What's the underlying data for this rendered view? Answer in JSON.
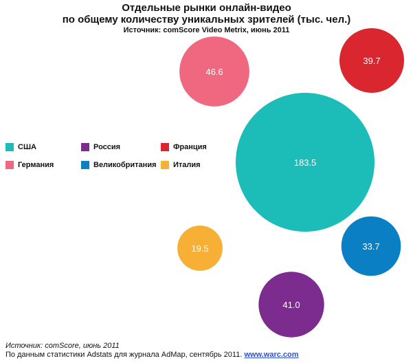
{
  "chart_data": {
    "type": "bubble",
    "title": "Отдельные рынки онлайн-видео\nпо общему количеству уникальных зрителей (тыс. чел.)",
    "title_lines": [
      "Отдельные рынки онлайн-видео",
      "по общему количеству уникальных зрителей (тыс. чел.)"
    ],
    "subtitle": "Источник: comScore Video Metrix, июнь 2011",
    "legend_placement": "left",
    "series": [
      {
        "name": "США",
        "value": 183.5,
        "label": "183.5",
        "color": "#1cbdb9"
      },
      {
        "name": "Германия",
        "value": 46.6,
        "label": "46.6",
        "color": "#f0687f"
      },
      {
        "name": "Россия",
        "value": 41.0,
        "label": "41.0",
        "color": "#7b2c8e"
      },
      {
        "name": "Франция",
        "value": 39.7,
        "label": "39.7",
        "color": "#d9262f"
      },
      {
        "name": "Великобритания",
        "value": 33.7,
        "label": "33.7",
        "color": "#0a7fc4"
      },
      {
        "name": "Италия",
        "value": 19.5,
        "label": "19.5",
        "color": "#f7b035"
      }
    ]
  },
  "footer": {
    "source": "Источник: comScore, июнь 2011",
    "note": "По данным статистики Adstats для журнала AdMap, сентябрь 2011.",
    "link_text": "www.warc.com"
  }
}
